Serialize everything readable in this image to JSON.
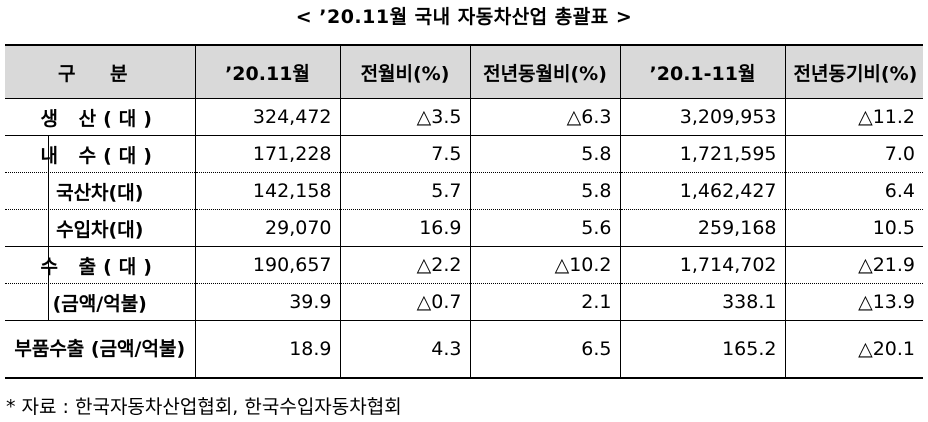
{
  "title": "< ’20.11월 국내 자동차산업 총괄표 >",
  "headers": [
    "구 분",
    "’20.11월",
    "전월비(%)",
    "전년동월비(%)",
    "’20.1-11월",
    "전년동기비(%)"
  ],
  "rows": [
    {
      "label": "생 산(대)",
      "values": [
        "324,472",
        "△3.5",
        "△6.3",
        "3,209,953",
        "△11.2"
      ]
    },
    {
      "label": "내 수(대)",
      "values": [
        "171,228",
        "7.5",
        "5.8",
        "1,721,595",
        "7.0"
      ]
    },
    {
      "label": "국산차(대)",
      "values": [
        "142,158",
        "5.7",
        "5.8",
        "1,462,427",
        "6.4"
      ]
    },
    {
      "label": "수입차(대)",
      "values": [
        "29,070",
        "16.9",
        "5.6",
        "259,168",
        "10.5"
      ]
    },
    {
      "label": "수 출(대)",
      "values": [
        "190,657",
        "△2.2",
        "△10.2",
        "1,714,702",
        "△21.9"
      ]
    },
    {
      "label": "(금액/억불)",
      "values": [
        "39.9",
        "△0.7",
        "2.1",
        "338.1",
        "△13.9"
      ]
    },
    {
      "label": "부품수출 (금액/억불)",
      "values": [
        "18.9",
        "4.3",
        "6.5",
        "165.2",
        "△20.1"
      ]
    }
  ],
  "note": "* 자료 : 한국자동차산업협회, 한국수입자동차협회"
}
